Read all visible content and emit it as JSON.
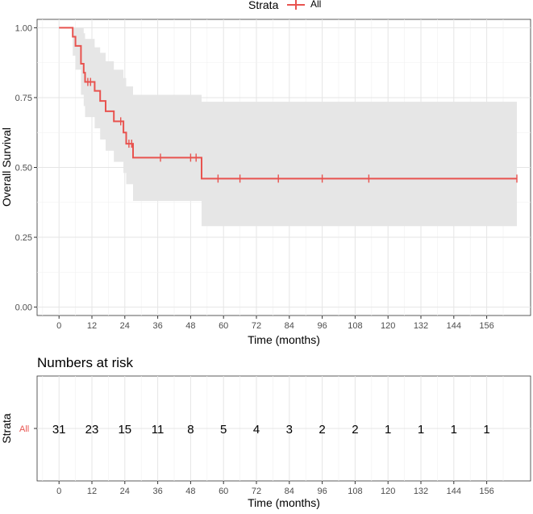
{
  "colors": {
    "curve": "#e8534f",
    "band": "#e6e6e6",
    "grid_major": "#e5e5e5",
    "grid_minor": "#f2f2f2",
    "axis_text": "#4d4d4d"
  },
  "legend": {
    "title": "Strata",
    "label": "All"
  },
  "risk_table": {
    "title": "Numbers at risk",
    "y_title": "Strata",
    "row_label": "All",
    "times": [
      0,
      12,
      24,
      36,
      48,
      60,
      72,
      84,
      96,
      108,
      120,
      132,
      144,
      156
    ],
    "counts": [
      "31",
      "23",
      "15",
      "11",
      "8",
      "5",
      "4",
      "3",
      "2",
      "2",
      "1",
      "1",
      "1",
      "1"
    ],
    "x_title": "Time (months)"
  },
  "chart_data": {
    "type": "line",
    "subtype": "kaplan-meier survival curve",
    "xlabel": "Time (months)",
    "ylabel": "Overall Survival",
    "xlim": [
      -8,
      172
    ],
    "ylim": [
      -0.03,
      1.03
    ],
    "x_ticks": [
      0,
      12,
      24,
      36,
      48,
      60,
      72,
      84,
      96,
      108,
      120,
      132,
      144,
      156
    ],
    "x_tick_labels": [
      "0",
      "12",
      "24",
      "36",
      "48",
      "60",
      "72",
      "84",
      "96",
      "108",
      "120",
      "132",
      "144",
      "156"
    ],
    "y_ticks": [
      0,
      0.25,
      0.5,
      0.75,
      1.0
    ],
    "y_tick_labels": [
      "0.00",
      "0.25",
      "0.50",
      "0.75",
      "1.00"
    ],
    "series": [
      {
        "name": "All",
        "steps": [
          {
            "t": 0,
            "s": 1.0,
            "lo": 1.0,
            "hi": 1.0
          },
          {
            "t": 5,
            "s": 0.968,
            "lo": 0.9,
            "hi": 1.0
          },
          {
            "t": 6,
            "s": 0.935,
            "lo": 0.85,
            "hi": 1.0
          },
          {
            "t": 8,
            "s": 0.871,
            "lo": 0.76,
            "hi": 1.0
          },
          {
            "t": 9,
            "s": 0.839,
            "lo": 0.72,
            "hi": 0.98
          },
          {
            "t": 9.5,
            "s": 0.806,
            "lo": 0.68,
            "hi": 0.96
          },
          {
            "t": 13,
            "s": 0.774,
            "lo": 0.64,
            "hi": 0.93
          },
          {
            "t": 15,
            "s": 0.738,
            "lo": 0.6,
            "hi": 0.91
          },
          {
            "t": 17,
            "s": 0.701,
            "lo": 0.56,
            "hi": 0.88
          },
          {
            "t": 20,
            "s": 0.665,
            "lo": 0.52,
            "hi": 0.85
          },
          {
            "t": 23.5,
            "s": 0.625,
            "lo": 0.48,
            "hi": 0.82
          },
          {
            "t": 24.5,
            "s": 0.585,
            "lo": 0.44,
            "hi": 0.79
          },
          {
            "t": 27,
            "s": 0.535,
            "lo": 0.38,
            "hi": 0.76
          },
          {
            "t": 52,
            "s": 0.46,
            "lo": 0.29,
            "hi": 0.735
          },
          {
            "t": 167,
            "s": 0.46,
            "lo": 0.29,
            "hi": 0.735
          }
        ],
        "censored": [
          {
            "t": 10.5,
            "s": 0.806
          },
          {
            "t": 11.5,
            "s": 0.806
          },
          {
            "t": 22.5,
            "s": 0.665
          },
          {
            "t": 25.5,
            "s": 0.585
          },
          {
            "t": 26.5,
            "s": 0.585
          },
          {
            "t": 37,
            "s": 0.535
          },
          {
            "t": 48,
            "s": 0.535
          },
          {
            "t": 50,
            "s": 0.535
          },
          {
            "t": 58,
            "s": 0.46
          },
          {
            "t": 66,
            "s": 0.46
          },
          {
            "t": 80,
            "s": 0.46
          },
          {
            "t": 96,
            "s": 0.46
          },
          {
            "t": 113,
            "s": 0.46
          },
          {
            "t": 167,
            "s": 0.46
          }
        ]
      }
    ]
  }
}
